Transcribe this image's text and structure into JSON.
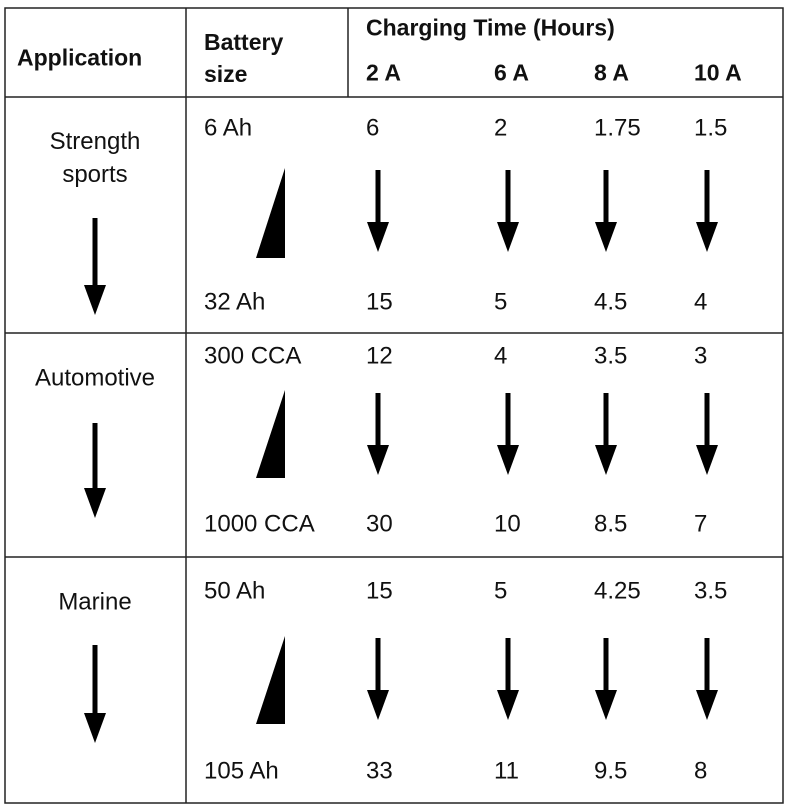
{
  "header": {
    "application": "Application",
    "battery_size": "Battery size",
    "charging_time": "Charging Time (Hours)",
    "currents": [
      "2 A",
      "6 A",
      "8 A",
      "10 A"
    ]
  },
  "groups": [
    {
      "application": "Strength sports",
      "size_from": "6 Ah",
      "size_to": "32 Ah",
      "times_from": [
        "6",
        "2",
        "1.75",
        "1.5"
      ],
      "times_to": [
        "15",
        "5",
        "4.5",
        "4"
      ]
    },
    {
      "application": "Automotive",
      "size_from": "300 CCA",
      "size_to": "1000 CCA",
      "times_from": [
        "12",
        "4",
        "3.5",
        "3"
      ],
      "times_to": [
        "30",
        "10",
        "8.5",
        "7"
      ]
    },
    {
      "application": "Marine",
      "size_from": "50 Ah",
      "size_to": "105 Ah",
      "times_from": [
        "15",
        "5",
        "4.25",
        "3.5"
      ],
      "times_to": [
        "33",
        "11",
        "9.5",
        "8"
      ]
    }
  ]
}
